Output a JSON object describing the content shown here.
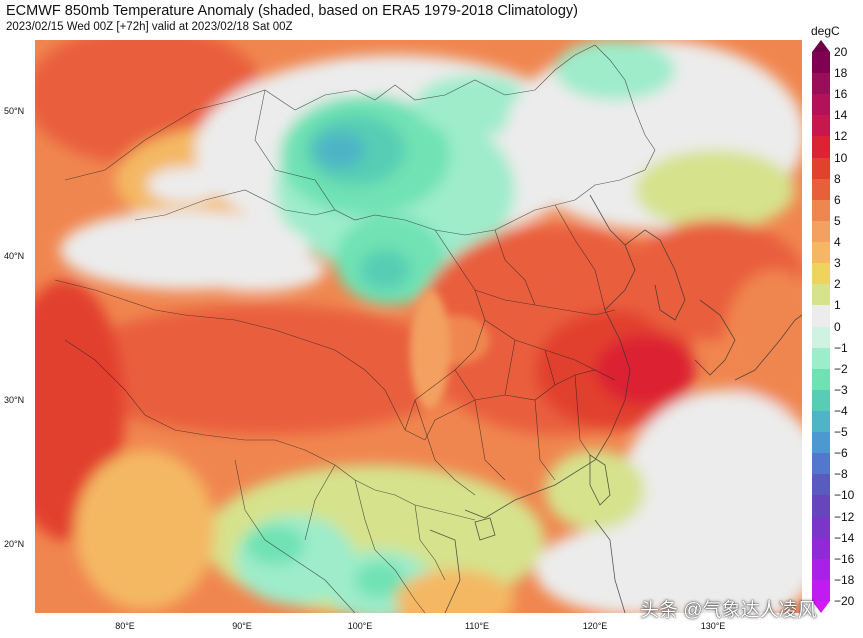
{
  "header": {
    "title": "ECMWF 850mb Temperature Anomaly (shaded, based on ERA5 1979-2018 Climatology)",
    "subtitle": "2023/02/15 Wed 00Z [+72h] valid at 2023/02/18 Sat 00Z"
  },
  "map": {
    "lat_labels": [
      "50°N",
      "40°N",
      "30°N",
      "20°N"
    ],
    "lon_labels": [
      "80°E",
      "90°E",
      "100°E",
      "110°E",
      "120°E",
      "130°E"
    ]
  },
  "colorbar": {
    "unit": "degC",
    "labels": [
      "20",
      "18",
      "16",
      "14",
      "12",
      "10",
      "8",
      "6",
      "5",
      "4",
      "3",
      "2",
      "1",
      "0",
      "−1",
      "−2",
      "−3",
      "−4",
      "−5",
      "−6",
      "−8",
      "−10",
      "−12",
      "−14",
      "−16",
      "−18",
      "−20"
    ],
    "colors": [
      "#800052",
      "#9a0d58",
      "#b3125a",
      "#c8174f",
      "#dc2333",
      "#e2412e",
      "#e95f3c",
      "#f0864f",
      "#f3a060",
      "#f4b864",
      "#eed35c",
      "#d6e28c",
      "#ececec",
      "#cff3e0",
      "#9eecca",
      "#6fe2b3",
      "#56cdb4",
      "#4eb4c7",
      "#4d98d0",
      "#5277cc",
      "#5a5bbf",
      "#6645bd",
      "#7a36c9",
      "#8f2ad9",
      "#a920e8",
      "#c01cf2"
    ],
    "top_color": "#6d0048",
    "bottom_color": "#d318fa"
  },
  "watermark": "头条 @气象达人凌风"
}
